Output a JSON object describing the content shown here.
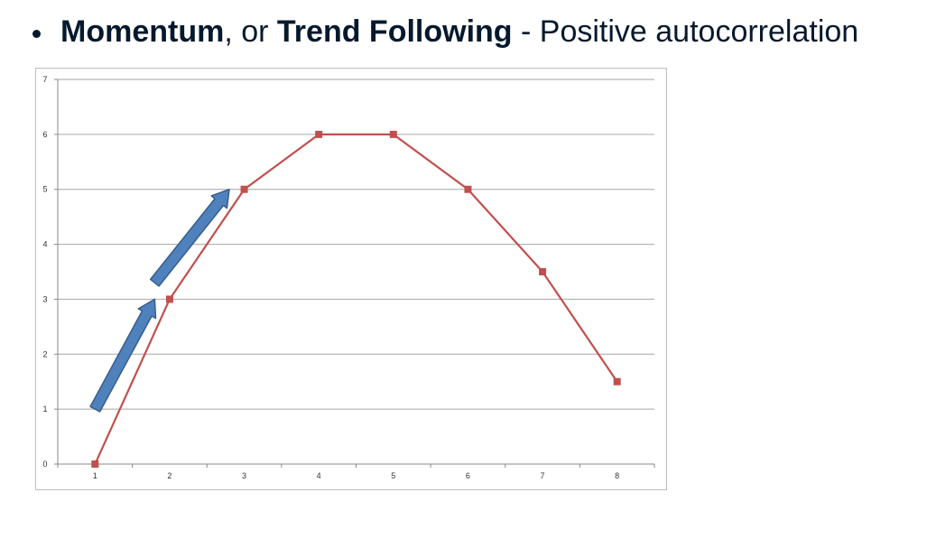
{
  "heading": {
    "part1_bold": "Momentum",
    "part2": ", or ",
    "part3_bold": "Trend Following",
    "part4": " - Positive autocorrelation"
  },
  "colors": {
    "text": "#05192d",
    "series_line": "#c0504d",
    "arrow_fill": "#4f81bd",
    "arrow_stroke": "#385d8a",
    "gridline": "#a6a6a6"
  },
  "chart_data": {
    "type": "line",
    "categories": [
      1,
      2,
      3,
      4,
      5,
      6,
      7,
      8
    ],
    "x": [
      1,
      2,
      3,
      4,
      5,
      6,
      7,
      8
    ],
    "series": [
      {
        "values": [
          0,
          3,
          5,
          6,
          6,
          5,
          3.5,
          1.5
        ]
      }
    ],
    "title": "",
    "xlabel": "",
    "ylabel": "",
    "ylim": [
      0,
      7
    ],
    "yticks": [
      0,
      1,
      2,
      3,
      4,
      5,
      6,
      7
    ],
    "grid": "horizontal",
    "legend": "none",
    "annotations": [
      {
        "type": "arrow",
        "from": [
          1,
          1
        ],
        "to": [
          1.8,
          3
        ]
      },
      {
        "type": "arrow",
        "from": [
          1.8,
          3.3
        ],
        "to": [
          2.8,
          5
        ]
      }
    ]
  }
}
